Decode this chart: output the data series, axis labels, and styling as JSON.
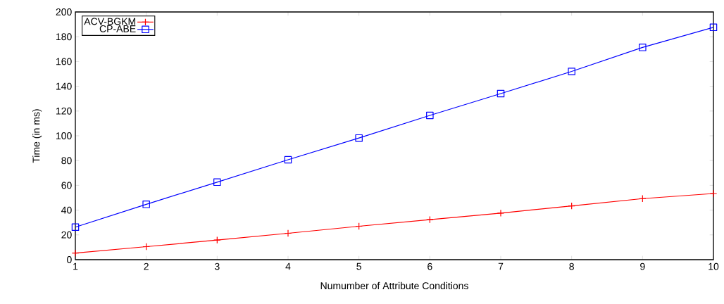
{
  "chart_data": {
    "type": "line",
    "xlabel": "Numumber of Attribute Conditions",
    "ylabel": "Time (in ms)",
    "x": [
      1,
      2,
      3,
      4,
      5,
      6,
      7,
      8,
      9,
      10
    ],
    "series": [
      {
        "name": "ACV-BGKM",
        "color": "#ff0000",
        "marker": "cross",
        "values": [
          5.3,
          10.5,
          15.8,
          21.3,
          27,
          32.3,
          37.6,
          43.4,
          49.3,
          53.4
        ]
      },
      {
        "name": "CP-ABE",
        "color": "#0000ff",
        "marker": "square",
        "values": [
          26.3,
          44.7,
          62.6,
          80.7,
          98.2,
          116.5,
          134.1,
          152,
          171.4,
          187.6
        ]
      }
    ],
    "xlim": [
      1,
      10
    ],
    "xticks": [
      1,
      2,
      3,
      4,
      5,
      6,
      7,
      8,
      9,
      10
    ],
    "ylim": [
      0,
      200
    ],
    "yticks": [
      0,
      20,
      40,
      60,
      80,
      100,
      120,
      140,
      160,
      180,
      200
    ],
    "grid": false,
    "legend": "top left",
    "line_style": "solid"
  }
}
